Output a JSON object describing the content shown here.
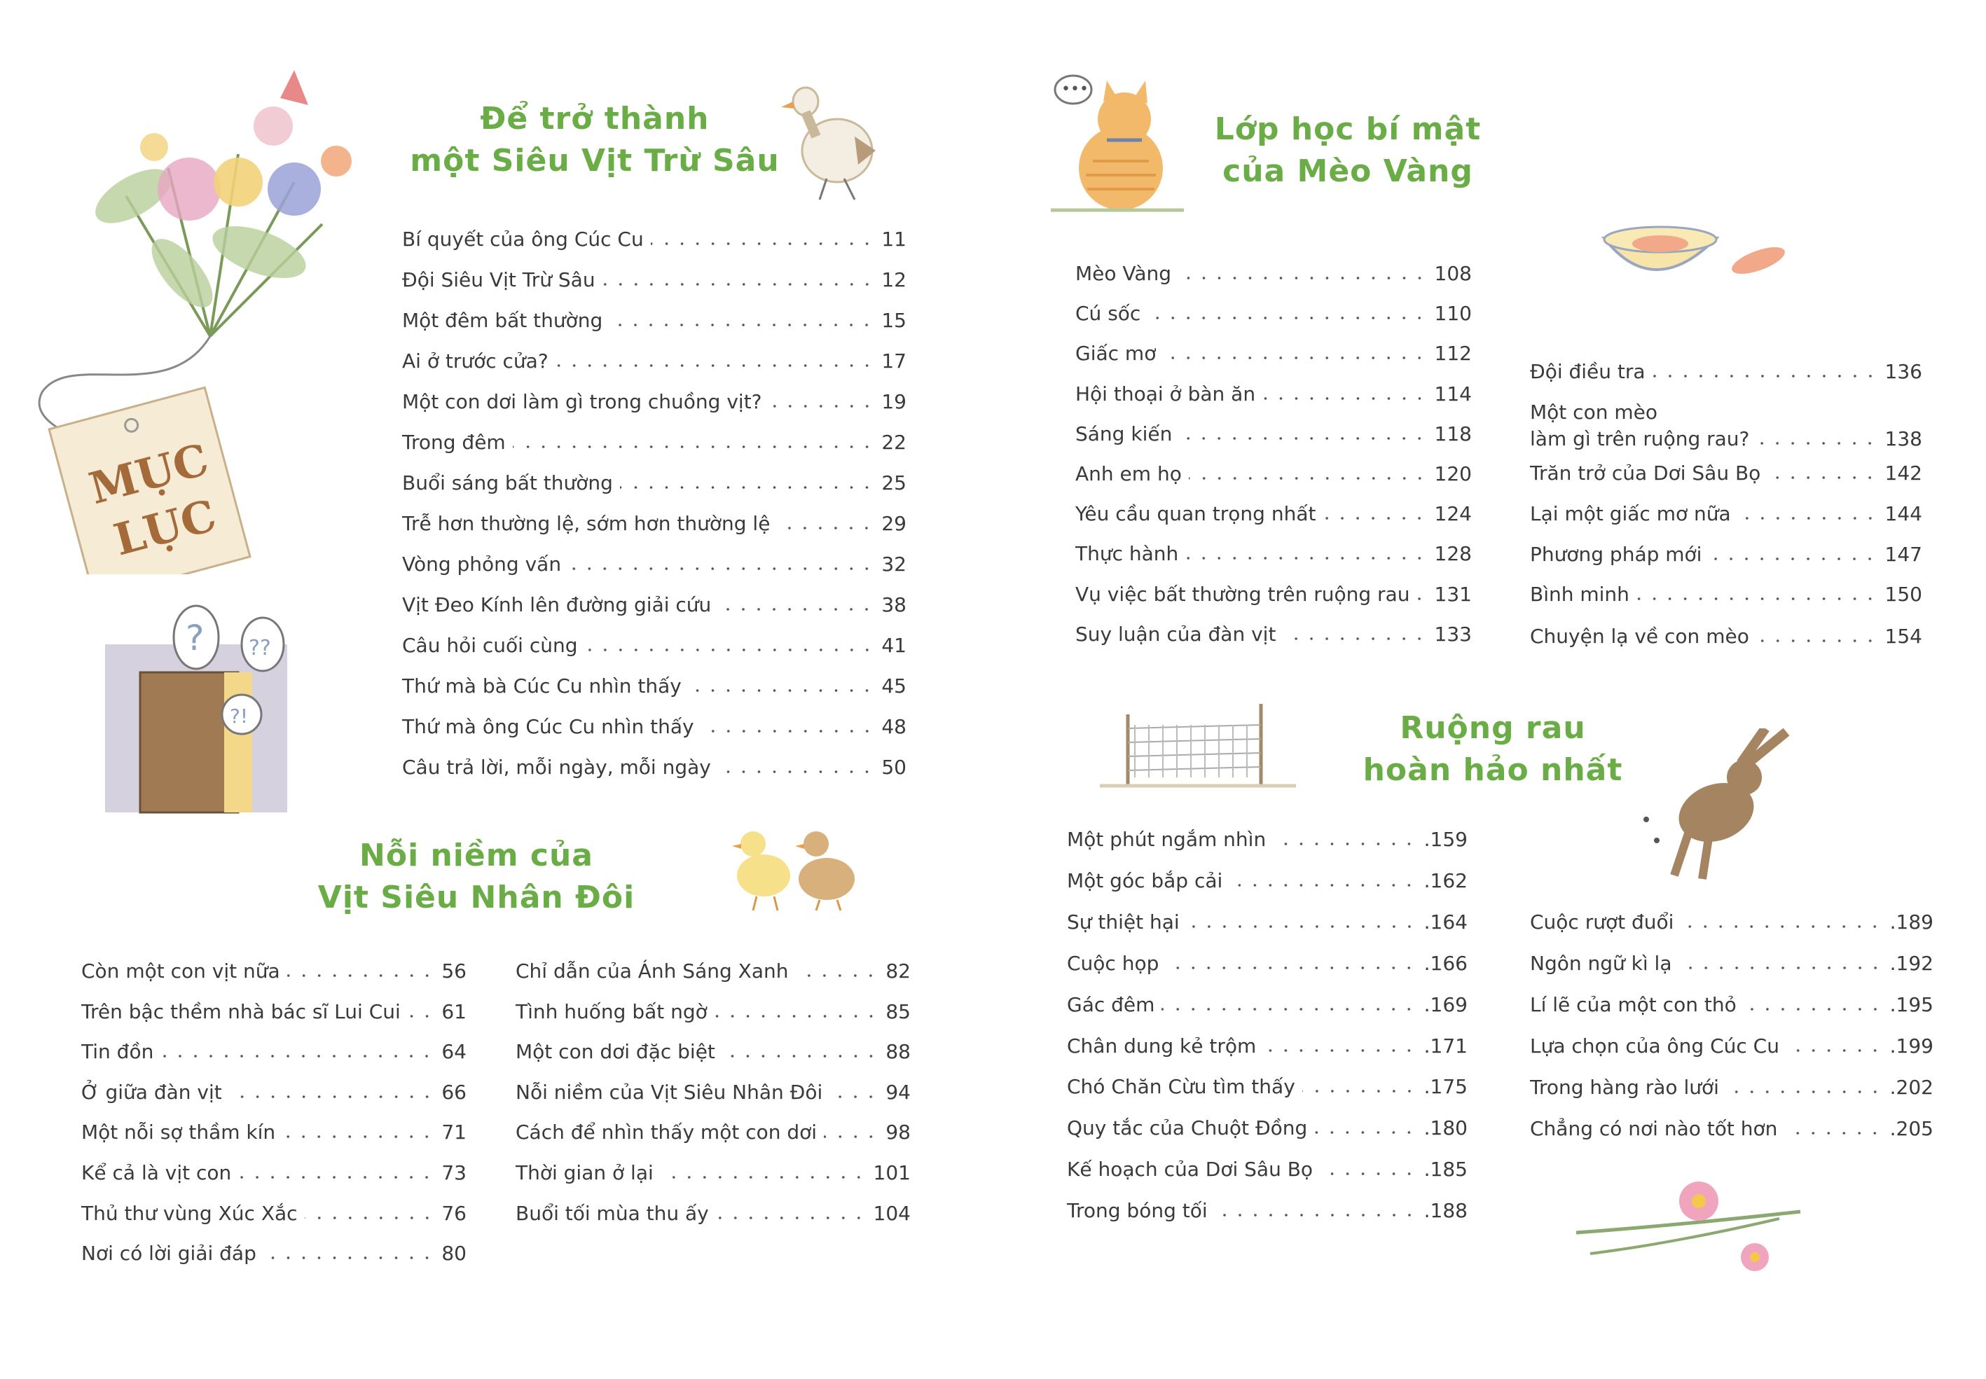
{
  "tag": {
    "text_line1": "MỤC",
    "text_line2": "LỤC"
  },
  "colors": {
    "title_green": "#6aac45",
    "text": "#3a3a3a",
    "tag_brown": "#a56a3a"
  },
  "sections": [
    {
      "title_line1": "Để trở thành",
      "title_line2": "một Siêu Vịt Trừ Sâu",
      "columns": [
        [
          {
            "label": "Bí quyết của ông Cúc Cu",
            "page": "11"
          },
          {
            "label": "Đội Siêu Vịt Trừ Sâu",
            "page": "12"
          },
          {
            "label": "Một đêm bất thường",
            "page": "15"
          },
          {
            "label": "Ai ở trước cửa?",
            "page": "17"
          },
          {
            "label": "Một con dơi làm gì trong chuồng vịt?",
            "page": "19"
          },
          {
            "label": "Trong đêm",
            "page": "22"
          },
          {
            "label": "Buổi sáng bất thường",
            "page": "25"
          },
          {
            "label": "Trễ hơn thường lệ, sớm hơn thường lệ",
            "page": "29"
          },
          {
            "label": "Vòng phỏng vấn",
            "page": "32"
          },
          {
            "label": "Vịt Đeo Kính lên đường giải cứu",
            "page": "38"
          },
          {
            "label": "Câu hỏi cuối cùng",
            "page": "41"
          },
          {
            "label": "Thứ mà bà Cúc Cu nhìn thấy",
            "page": "45"
          },
          {
            "label": "Thứ mà ông Cúc Cu nhìn thấy",
            "page": "48"
          },
          {
            "label": "Câu trả lời, mỗi ngày, mỗi ngày",
            "page": "50"
          }
        ]
      ]
    },
    {
      "title_line1": "Nỗi niềm của",
      "title_line2": "Vịt Siêu Nhân Đôi",
      "columns": [
        [
          {
            "label": "Còn một con vịt nữa",
            "page": "56"
          },
          {
            "label": "Trên bậc thềm nhà bác sĩ Lui Cui",
            "page": "61"
          },
          {
            "label": "Tin đồn",
            "page": "64"
          },
          {
            "label": "Ở giữa đàn vịt",
            "page": "66"
          },
          {
            "label": "Một nỗi sợ thầm kín",
            "page": "71"
          },
          {
            "label": "Kể cả là vịt con",
            "page": "73"
          },
          {
            "label": "Thủ thư vùng Xúc Xắc",
            "page": "76"
          },
          {
            "label": "Nơi có lời giải đáp",
            "page": "80"
          }
        ],
        [
          {
            "label": "Chỉ dẫn của Ánh Sáng Xanh",
            "page": "82"
          },
          {
            "label": "Tình huống bất ngờ",
            "page": "85"
          },
          {
            "label": "Một con dơi đặc biệt",
            "page": "88"
          },
          {
            "label": "Nỗi niềm của Vịt Siêu Nhân Đôi",
            "page": "94"
          },
          {
            "label": "Cách để nhìn thấy một con dơi",
            "page": "98"
          },
          {
            "label": "Thời gian ở lại",
            "page": "101"
          },
          {
            "label": "Buổi tối mùa thu ấy",
            "page": "104"
          }
        ]
      ]
    },
    {
      "title_line1": "Lớp học bí mật",
      "title_line2": "của Mèo Vàng",
      "columns": [
        [
          {
            "label": "Mèo Vàng",
            "page": "108"
          },
          {
            "label": "Cú sốc",
            "page": "110"
          },
          {
            "label": "Giấc mơ",
            "page": "112"
          },
          {
            "label": "Hội thoại ở bàn ăn",
            "page": "114"
          },
          {
            "label": "Sáng kiến",
            "page": "118"
          },
          {
            "label": "Anh em họ",
            "page": "120"
          },
          {
            "label": "Yêu cầu quan trọng nhất",
            "page": "124"
          },
          {
            "label": "Thực hành",
            "page": "128"
          },
          {
            "label": "Vụ việc bất thường trên ruộng rau",
            "page": "131"
          },
          {
            "label": "Suy luận của đàn vịt",
            "page": "133"
          }
        ],
        [
          {
            "label": "Đội điều tra",
            "page": "136"
          },
          {
            "pre": "Một con mèo",
            "label": "làm gì trên ruộng rau?",
            "page": "138"
          },
          {
            "label": "Trăn trở của Dơi Sâu Bọ",
            "page": "142"
          },
          {
            "label": "Lại một giấc mơ nữa",
            "page": "144"
          },
          {
            "label": "Phương pháp mới",
            "page": "147"
          },
          {
            "label": "Bình minh",
            "page": "150"
          },
          {
            "label": "Chuyện lạ về con mèo",
            "page": "154"
          }
        ]
      ]
    },
    {
      "title_line1": "Ruộng rau",
      "title_line2": "hoàn hảo nhất",
      "columns": [
        [
          {
            "label": "Một phút ngắm nhìn",
            "page": ".159"
          },
          {
            "label": "Một góc bắp cải",
            "page": ".162"
          },
          {
            "label": "Sự thiệt hại",
            "page": ".164"
          },
          {
            "label": "Cuộc họp",
            "page": ".166"
          },
          {
            "label": "Gác đêm",
            "page": ".169"
          },
          {
            "label": "Chân dung kẻ trộm",
            "page": ".171"
          },
          {
            "label": "Chó Chăn Cừu tìm thấy",
            "page": ".175"
          },
          {
            "label": "Quy tắc của Chuột Đồng",
            "page": ".180"
          },
          {
            "label": "Kế hoạch của Dơi Sâu Bọ",
            "page": ".185"
          },
          {
            "label": "Trong bóng tối",
            "page": ".188"
          }
        ],
        [
          {
            "label": "Cuộc rượt đuổi",
            "page": ".189"
          },
          {
            "label": "Ngôn ngữ kì lạ",
            "page": ".192"
          },
          {
            "label": "Lí lẽ của một con thỏ",
            "page": ".195"
          },
          {
            "label": "Lựa chọn của ông Cúc Cu",
            "page": ".199"
          },
          {
            "label": "Trong hàng rào lưới",
            "page": ".202"
          },
          {
            "label": "Chẳng có nơi nào tốt hơn",
            "page": ".205"
          }
        ]
      ]
    }
  ]
}
